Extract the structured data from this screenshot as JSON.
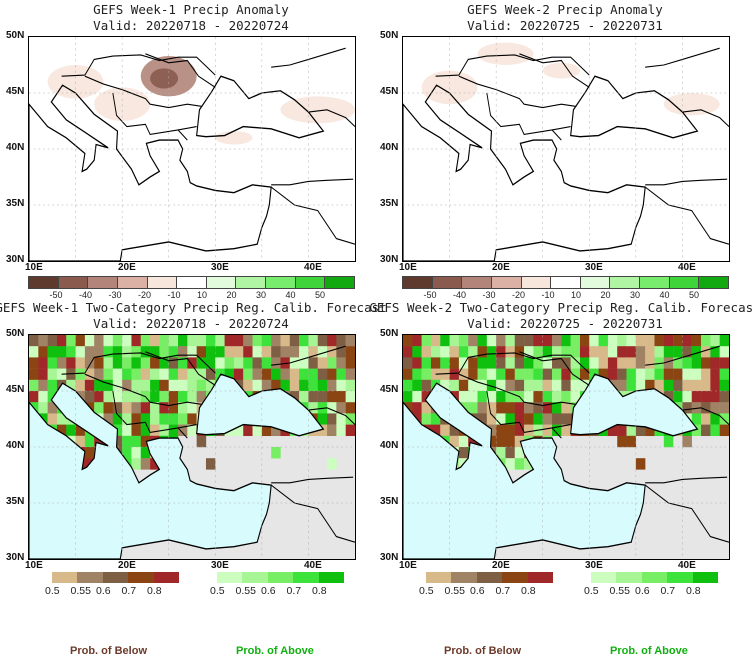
{
  "panels": [
    {
      "title": "GEFS Week-1 Precip Anomaly",
      "valid": "Valid: 20220718 - 20220724",
      "type": "anomaly"
    },
    {
      "title": "GEFS Week-2 Precip Anomaly",
      "valid": "Valid: 20220725 - 20220731",
      "type": "anomaly"
    },
    {
      "title": "GEFS Week-1 Two-Category Precip Reg. Calib. Forecast",
      "valid": "Valid: 20220718 - 20220724",
      "type": "prob"
    },
    {
      "title": "GEFS Week-2 Two-Category Precip Reg. Calib. Forecast",
      "valid": "Valid: 20220725 - 20220731",
      "type": "prob"
    }
  ],
  "axes": {
    "lat": [
      "50N",
      "45N",
      "40N",
      "35N",
      "30N"
    ],
    "lon": [
      "10E",
      "20E",
      "30E",
      "40E"
    ]
  },
  "anomaly_colorbar": {
    "labels": [
      "-50",
      "-40",
      "-30",
      "-20",
      "-10",
      "10",
      "20",
      "30",
      "40",
      "50"
    ],
    "colors": [
      "#5e3a2e",
      "#8a5a4e",
      "#b3857a",
      "#dcb1a5",
      "#f7e6dc",
      "#ffffff",
      "#e1fbdc",
      "#aff5a4",
      "#78ec6c",
      "#3fd53a",
      "#12a80f"
    ]
  },
  "below_colorbar": {
    "labels": [
      "0.5",
      "0.55",
      "0.6",
      "0.7",
      "0.8"
    ],
    "colors": [
      "#d7b98a",
      "#a08265",
      "#7f5f43",
      "#8b4513",
      "#a02828"
    ]
  },
  "above_colorbar": {
    "labels": [
      "0.5",
      "0.55",
      "0.6",
      "0.7",
      "0.8"
    ],
    "colors": [
      "#ccffbf",
      "#a8f595",
      "#78ee64",
      "#3de33a",
      "#10c00e"
    ]
  },
  "footer": {
    "below": "Prob. of Below",
    "above": "Prob. of Above",
    "below_color": "#6b3a2a",
    "above_color": "#10b010"
  }
}
